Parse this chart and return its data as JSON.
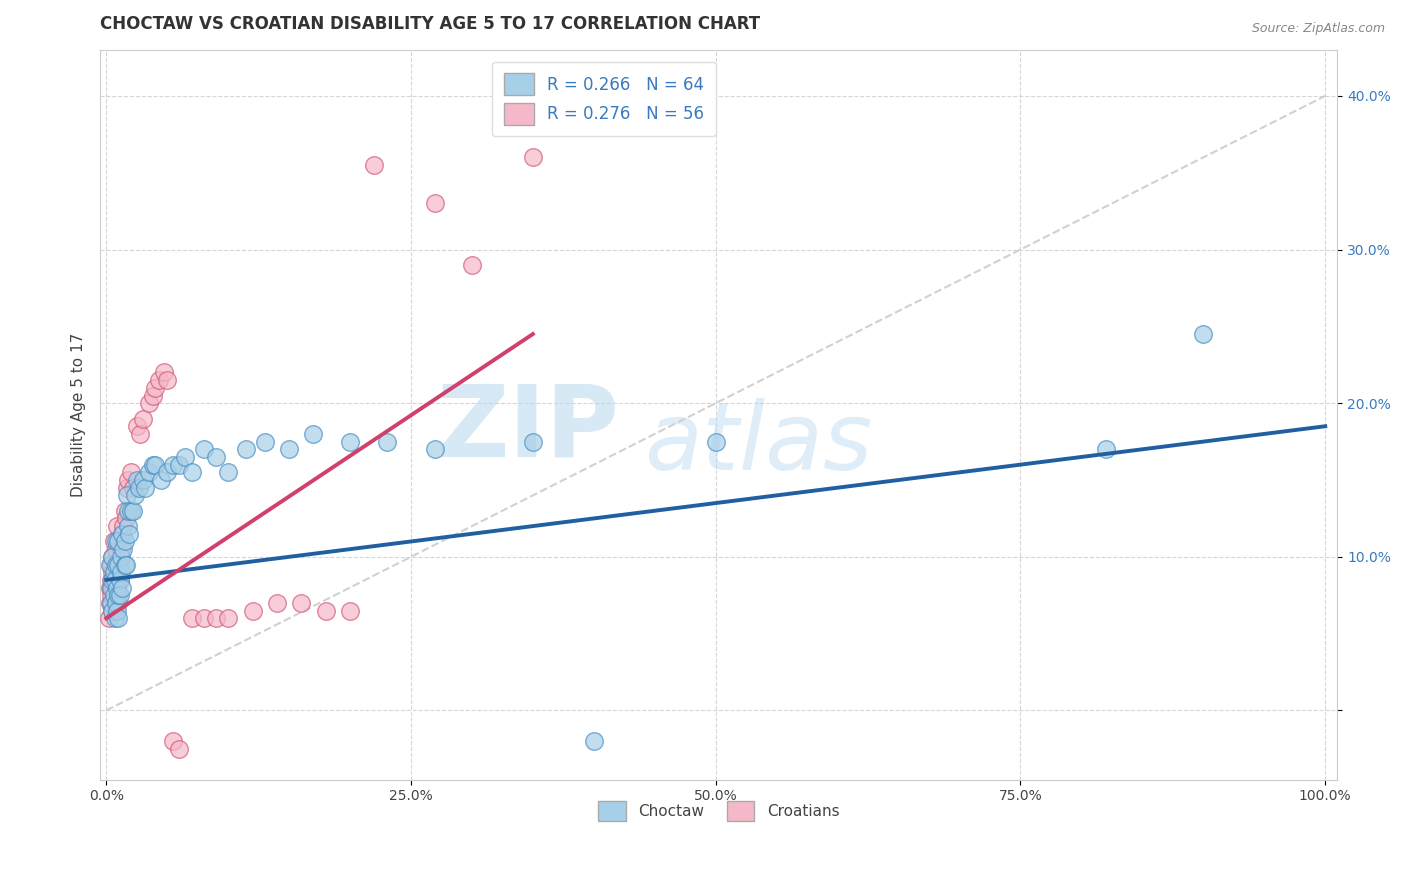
{
  "title": "CHOCTAW VS CROATIAN DISABILITY AGE 5 TO 17 CORRELATION CHART",
  "ylabel": "Disability Age 5 to 17",
  "source": "Source: ZipAtlas.com",
  "watermark_zip": "ZIP",
  "watermark_atlas": "atlas",
  "xlim": [
    -0.005,
    1.01
  ],
  "ylim": [
    -0.045,
    0.43
  ],
  "xticks": [
    0.0,
    0.25,
    0.5,
    0.75,
    1.0
  ],
  "xtick_labels": [
    "0.0%",
    "25.0%",
    "50.0%",
    "75.0%",
    "100.0%"
  ],
  "yticks": [
    0.0,
    0.1,
    0.2,
    0.3,
    0.4
  ],
  "ytick_labels": [
    "",
    "10.0%",
    "20.0%",
    "30.0%",
    "40.0%"
  ],
  "choctaw_R": 0.266,
  "choctaw_N": 64,
  "croatian_R": 0.276,
  "croatian_N": 56,
  "choctaw_color": "#a8cfe8",
  "croatian_color": "#f4b8c8",
  "choctaw_edge_color": "#4a90c4",
  "croatian_edge_color": "#d45a7a",
  "choctaw_line_color": "#2060a0",
  "croatian_line_color": "#d0406a",
  "ref_line_color": "#cccccc",
  "background_color": "#ffffff",
  "title_color": "#333333",
  "ytick_color": "#3a7abf",
  "choctaw_x": [
    0.003,
    0.004,
    0.004,
    0.005,
    0.005,
    0.005,
    0.006,
    0.006,
    0.007,
    0.007,
    0.008,
    0.008,
    0.008,
    0.009,
    0.009,
    0.01,
    0.01,
    0.01,
    0.01,
    0.011,
    0.011,
    0.012,
    0.012,
    0.013,
    0.013,
    0.014,
    0.015,
    0.015,
    0.016,
    0.017,
    0.018,
    0.018,
    0.019,
    0.02,
    0.022,
    0.024,
    0.025,
    0.027,
    0.03,
    0.032,
    0.035,
    0.038,
    0.04,
    0.045,
    0.05,
    0.055,
    0.06,
    0.065,
    0.07,
    0.08,
    0.09,
    0.1,
    0.115,
    0.13,
    0.15,
    0.17,
    0.2,
    0.23,
    0.27,
    0.35,
    0.4,
    0.5,
    0.82,
    0.9
  ],
  "choctaw_y": [
    0.095,
    0.08,
    0.07,
    0.065,
    0.085,
    0.1,
    0.075,
    0.09,
    0.085,
    0.06,
    0.095,
    0.07,
    0.11,
    0.08,
    0.065,
    0.095,
    0.075,
    0.11,
    0.06,
    0.085,
    0.075,
    0.09,
    0.1,
    0.08,
    0.115,
    0.105,
    0.11,
    0.095,
    0.095,
    0.14,
    0.12,
    0.13,
    0.115,
    0.13,
    0.13,
    0.14,
    0.15,
    0.145,
    0.15,
    0.145,
    0.155,
    0.16,
    0.16,
    0.15,
    0.155,
    0.16,
    0.16,
    0.165,
    0.155,
    0.17,
    0.165,
    0.155,
    0.17,
    0.175,
    0.17,
    0.18,
    0.175,
    0.175,
    0.17,
    0.175,
    -0.02,
    0.175,
    0.17,
    0.245
  ],
  "croatian_x": [
    0.002,
    0.003,
    0.003,
    0.004,
    0.004,
    0.004,
    0.005,
    0.005,
    0.005,
    0.005,
    0.006,
    0.006,
    0.007,
    0.007,
    0.008,
    0.008,
    0.009,
    0.009,
    0.01,
    0.01,
    0.01,
    0.011,
    0.011,
    0.012,
    0.013,
    0.014,
    0.015,
    0.016,
    0.017,
    0.018,
    0.02,
    0.022,
    0.025,
    0.028,
    0.03,
    0.035,
    0.038,
    0.04,
    0.043,
    0.047,
    0.05,
    0.055,
    0.06,
    0.07,
    0.08,
    0.09,
    0.1,
    0.12,
    0.14,
    0.16,
    0.18,
    0.2,
    0.22,
    0.27,
    0.3,
    0.35
  ],
  "croatian_y": [
    0.06,
    0.08,
    0.07,
    0.085,
    0.095,
    0.075,
    0.065,
    0.08,
    0.09,
    0.1,
    0.075,
    0.11,
    0.085,
    0.095,
    0.07,
    0.105,
    0.08,
    0.12,
    0.09,
    0.07,
    0.11,
    0.095,
    0.085,
    0.105,
    0.115,
    0.12,
    0.13,
    0.125,
    0.145,
    0.15,
    0.155,
    0.145,
    0.185,
    0.18,
    0.19,
    0.2,
    0.205,
    0.21,
    0.215,
    0.22,
    0.215,
    -0.02,
    -0.025,
    0.06,
    0.06,
    0.06,
    0.06,
    0.065,
    0.07,
    0.07,
    0.065,
    0.065,
    0.355,
    0.33,
    0.29,
    0.36
  ],
  "choctaw_line_x": [
    0.0,
    1.0
  ],
  "choctaw_line_y": [
    0.085,
    0.185
  ],
  "croatian_line_x": [
    0.0,
    0.35
  ],
  "croatian_line_y": [
    0.06,
    0.245
  ]
}
